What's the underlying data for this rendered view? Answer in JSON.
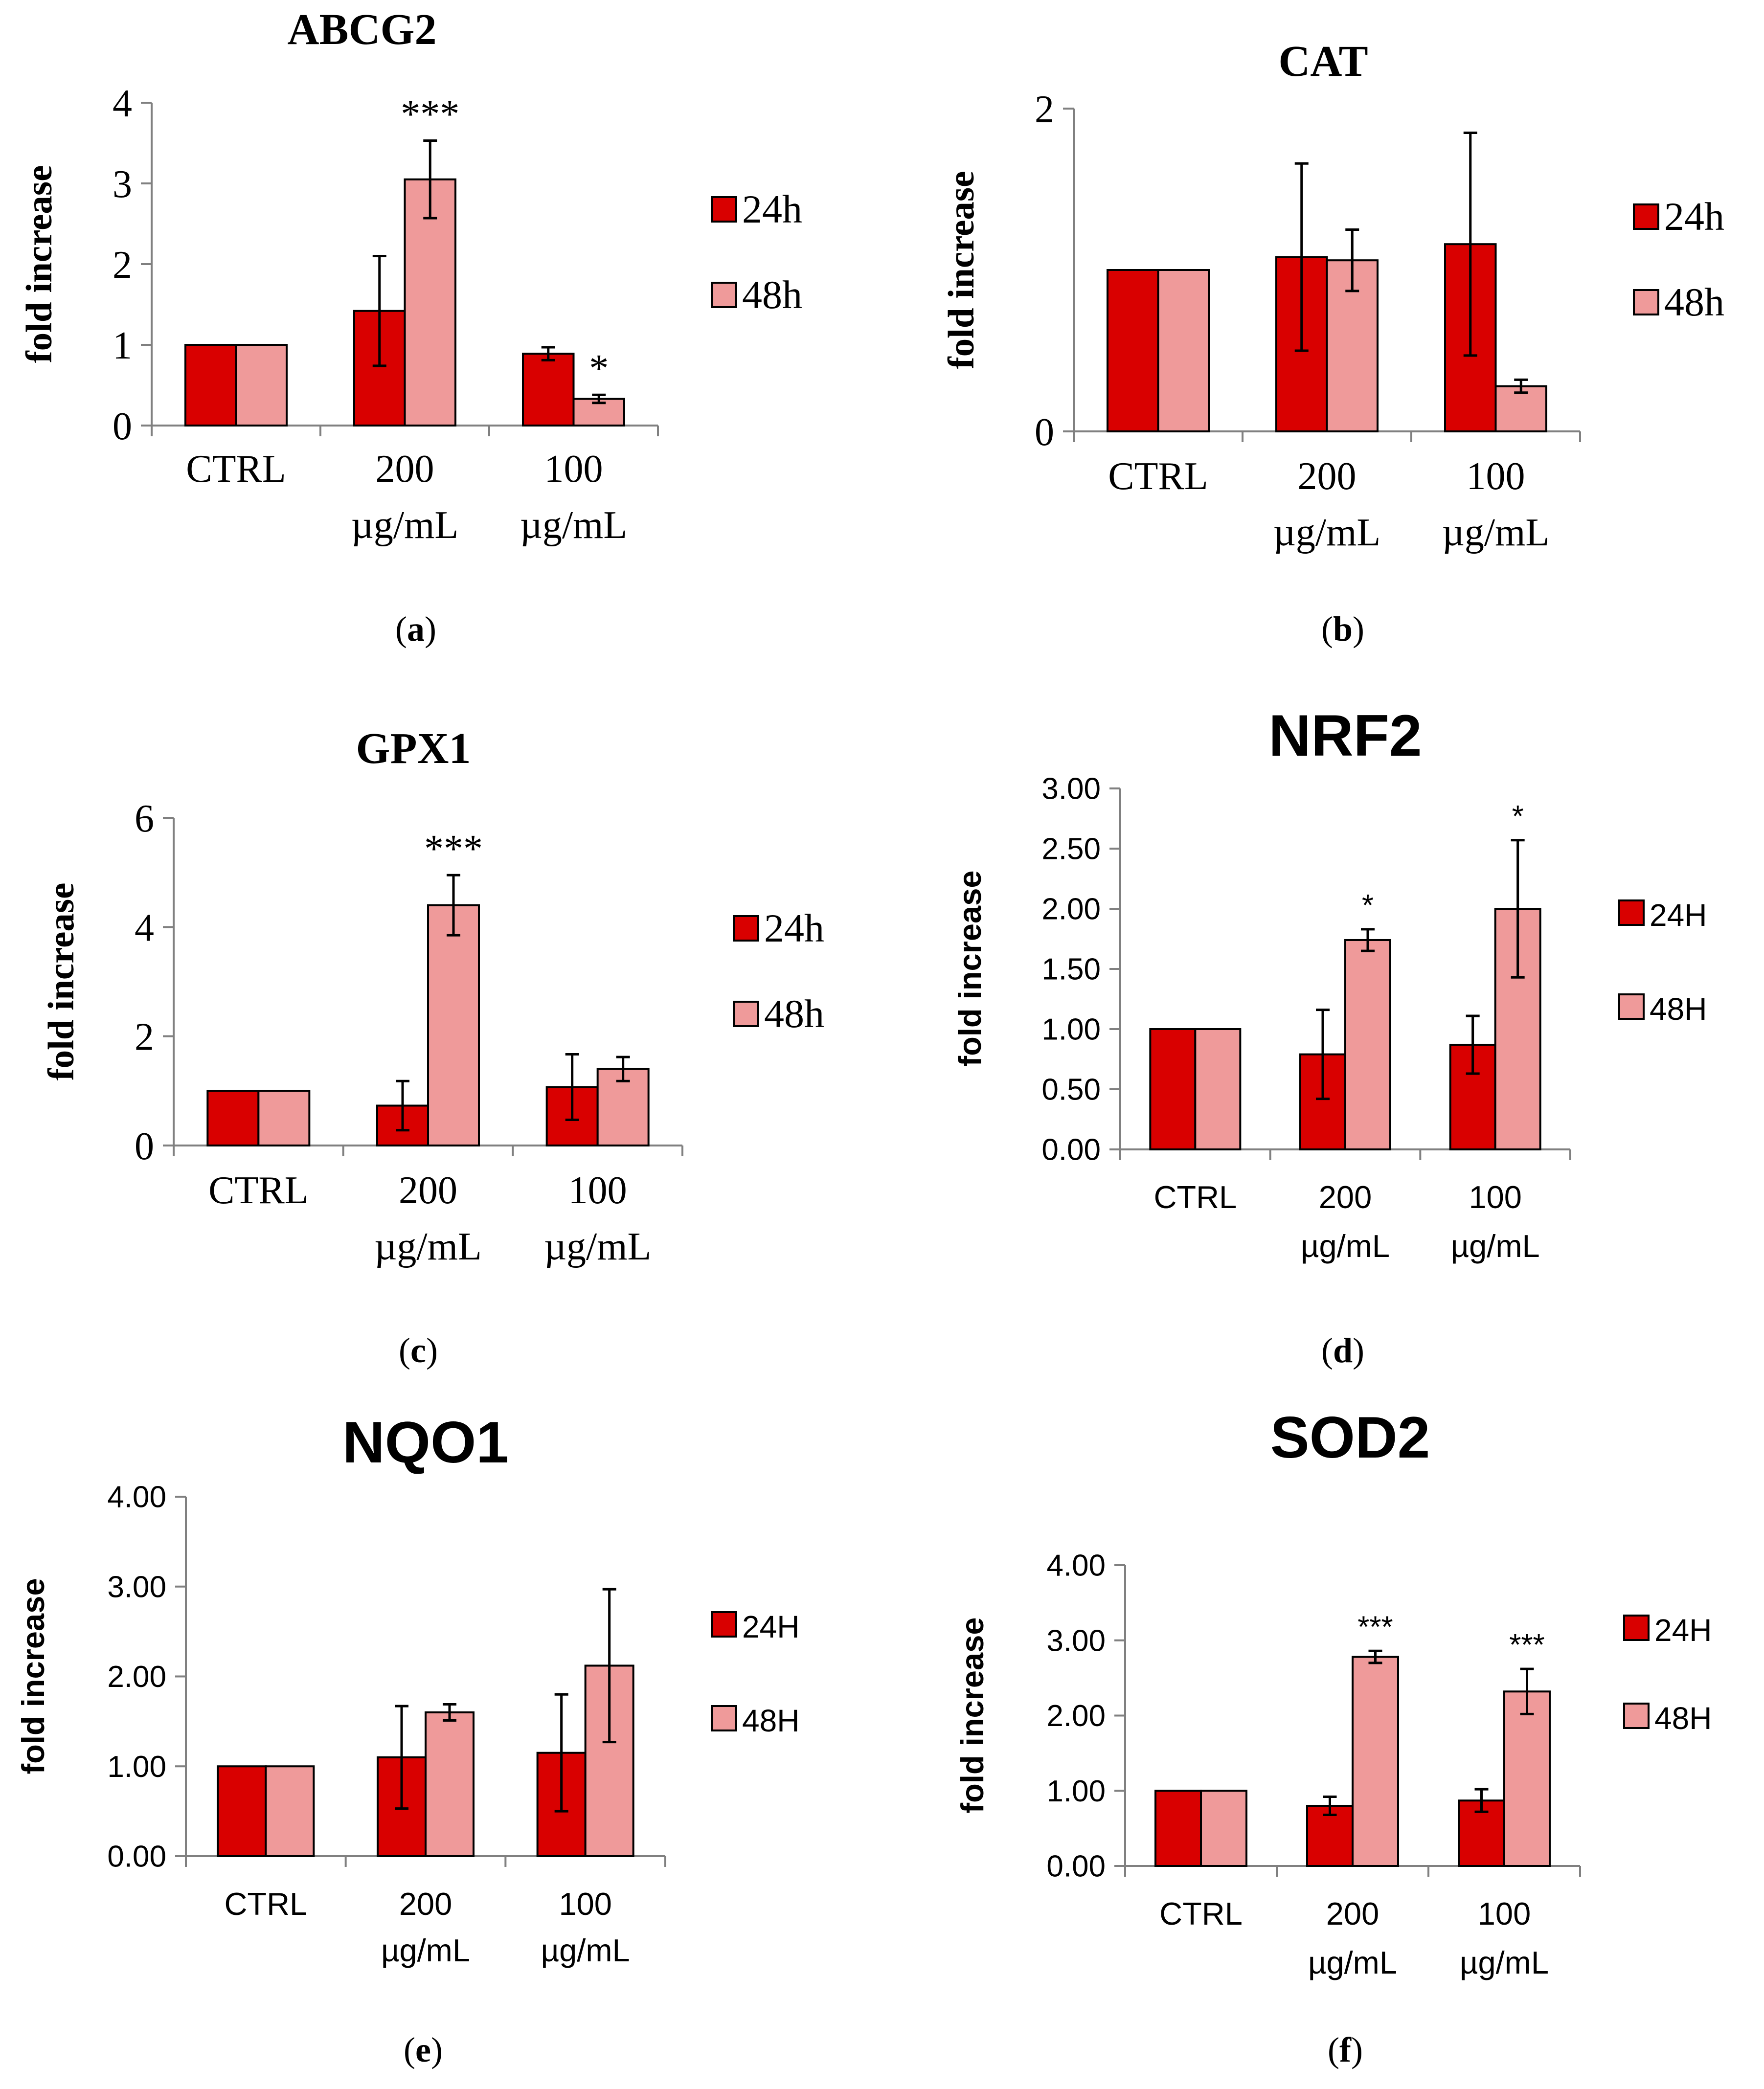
{
  "figure": {
    "panels": [
      {
        "id": "a",
        "caption": "(a)",
        "bold_letter": "a",
        "font": "serif"
      },
      {
        "id": "b",
        "caption": "(b)",
        "bold_letter": "b",
        "font": "serif"
      },
      {
        "id": "c",
        "caption": "(c)",
        "bold_letter": "c",
        "font": "serif"
      },
      {
        "id": "d",
        "caption": "(d)",
        "bold_letter": "d",
        "font": "sans"
      },
      {
        "id": "e",
        "caption": "(e)",
        "bold_letter": "e",
        "font": "sans"
      },
      {
        "id": "f",
        "caption": "(f)",
        "bold_letter": "f",
        "font": "sans"
      }
    ]
  },
  "colors": {
    "series_24": "#d90000",
    "series_48": "#ef9a9a",
    "stroke": "#000000"
  },
  "chart_data": [
    {
      "type": "bar",
      "title": "ABCG2",
      "ylabel": "fold increase",
      "categories": [
        [
          "CTRL"
        ],
        [
          "200",
          "µg/mL"
        ],
        [
          "100",
          "µg/mL"
        ]
      ],
      "ylim": [
        0,
        4
      ],
      "yticks": [
        "0",
        "1",
        "2",
        "3",
        "4"
      ],
      "series": [
        {
          "name": "24h",
          "values": [
            1.0,
            1.42,
            0.89
          ],
          "errors": [
            0,
            0.68,
            0.08
          ]
        },
        {
          "name": "48h",
          "values": [
            1.0,
            3.05,
            0.33
          ],
          "errors": [
            0,
            0.48,
            0.05
          ]
        }
      ],
      "annotations": [
        {
          "text": "***",
          "series": 1,
          "category": 1
        },
        {
          "text": "*",
          "series": 1,
          "category": 2
        }
      ],
      "legend": "right"
    },
    {
      "type": "bar",
      "title": "CAT",
      "ylabel": "fold increase",
      "categories": [
        [
          "CTRL"
        ],
        [
          "200",
          "µg/mL"
        ],
        [
          "100",
          "µg/mL"
        ]
      ],
      "ylim": [
        0,
        2
      ],
      "yticks": [
        "0",
        "2"
      ],
      "series": [
        {
          "name": "24h",
          "values": [
            1.0,
            1.08,
            1.16
          ],
          "errors": [
            0,
            0.58,
            0.69
          ]
        },
        {
          "name": "48h",
          "values": [
            1.0,
            1.06,
            0.28
          ],
          "errors": [
            0,
            0.19,
            0.04
          ]
        }
      ],
      "annotations": [],
      "legend": "right"
    },
    {
      "type": "bar",
      "title": "GPX1",
      "ylabel": "fold increase",
      "categories": [
        [
          "CTRL"
        ],
        [
          "200",
          "µg/mL"
        ],
        [
          "100",
          "µg/mL"
        ]
      ],
      "ylim": [
        0,
        6
      ],
      "yticks": [
        "0",
        "2",
        "4",
        "6"
      ],
      "series": [
        {
          "name": "24h",
          "values": [
            1.0,
            0.73,
            1.07
          ],
          "errors": [
            0,
            0.45,
            0.6
          ]
        },
        {
          "name": "48h",
          "values": [
            1.0,
            4.4,
            1.4
          ],
          "errors": [
            0,
            0.55,
            0.22
          ]
        }
      ],
      "annotations": [
        {
          "text": "***",
          "series": 1,
          "category": 1
        }
      ],
      "legend": "right"
    },
    {
      "type": "bar",
      "title": "NRF2",
      "ylabel": "fold increase",
      "categories": [
        [
          "CTRL"
        ],
        [
          "200",
          "µg/mL"
        ],
        [
          "100",
          "µg/mL"
        ]
      ],
      "ylim": [
        0,
        3
      ],
      "yticks": [
        "0.00",
        "0.50",
        "1.00",
        "1.50",
        "2.00",
        "2.50",
        "3.00"
      ],
      "series": [
        {
          "name": "24H",
          "values": [
            1.0,
            0.79,
            0.87
          ],
          "errors": [
            0,
            0.37,
            0.24
          ]
        },
        {
          "name": "48H",
          "values": [
            1.0,
            1.74,
            2.0
          ],
          "errors": [
            0,
            0.09,
            0.57
          ]
        }
      ],
      "annotations": [
        {
          "text": "*",
          "series": 1,
          "category": 1
        },
        {
          "text": "*",
          "series": 1,
          "category": 2
        }
      ],
      "legend": "right"
    },
    {
      "type": "bar",
      "title": "NQO1",
      "ylabel": "fold increase",
      "categories": [
        [
          "CTRL"
        ],
        [
          "200",
          "µg/mL"
        ],
        [
          "100",
          "µg/mL"
        ]
      ],
      "ylim": [
        0,
        4
      ],
      "yticks": [
        "0.00",
        "1.00",
        "2.00",
        "3.00",
        "4.00"
      ],
      "series": [
        {
          "name": "24H",
          "values": [
            1.0,
            1.1,
            1.15
          ],
          "errors": [
            0,
            0.57,
            0.65
          ]
        },
        {
          "name": "48H",
          "values": [
            1.0,
            1.6,
            2.12
          ],
          "errors": [
            0,
            0.09,
            0.85
          ]
        }
      ],
      "annotations": [],
      "legend": "right"
    },
    {
      "type": "bar",
      "title": "SOD2",
      "ylabel": "fold increase",
      "categories": [
        [
          "CTRL"
        ],
        [
          "200",
          "µg/mL"
        ],
        [
          "100",
          "µg/mL"
        ]
      ],
      "ylim": [
        0,
        4
      ],
      "yticks": [
        "0.00",
        "1.00",
        "2.00",
        "3.00",
        "4.00"
      ],
      "series": [
        {
          "name": "24H",
          "values": [
            1.0,
            0.8,
            0.87
          ],
          "errors": [
            0,
            0.12,
            0.15
          ]
        },
        {
          "name": "48H",
          "values": [
            1.0,
            2.78,
            2.32
          ],
          "errors": [
            0,
            0.08,
            0.3
          ]
        }
      ],
      "annotations": [
        {
          "text": "***",
          "series": 1,
          "category": 1
        },
        {
          "text": "***",
          "series": 1,
          "category": 2
        }
      ],
      "legend": "right"
    }
  ]
}
